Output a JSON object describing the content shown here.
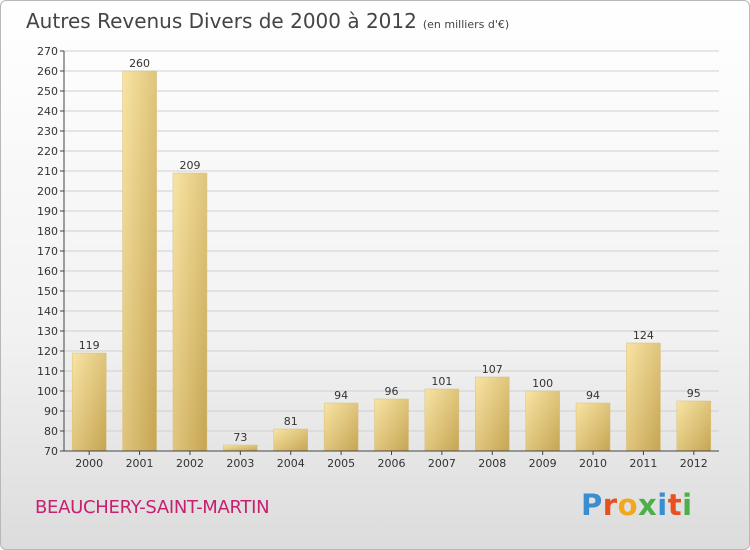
{
  "title": {
    "main": "Autres Revenus Divers de 2000 à 2012",
    "unit": "(en milliers d'€)"
  },
  "commune": "BEAUCHERY-SAINT-MARTIN",
  "logo": {
    "text": "Proxiti",
    "letters": [
      {
        "ch": "P",
        "color": "#3a8ed0"
      },
      {
        "ch": "r",
        "color": "#e94f1f"
      },
      {
        "ch": "o",
        "color": "#f2a81d"
      },
      {
        "ch": "x",
        "color": "#4bb04a"
      },
      {
        "ch": "i",
        "color": "#3a8ed0"
      },
      {
        "ch": "t",
        "color": "#e94f1f"
      },
      {
        "ch": "i",
        "color": "#4bb04a"
      }
    ]
  },
  "colors": {
    "bar_light": "#f6df9a",
    "bar_dark": "#c9a95a",
    "title": "#444444",
    "commune": "#c72070"
  },
  "chart_data": {
    "type": "bar",
    "categories": [
      "2000",
      "2001",
      "2002",
      "2003",
      "2004",
      "2005",
      "2006",
      "2007",
      "2008",
      "2009",
      "2010",
      "2011",
      "2012"
    ],
    "values": [
      119,
      260,
      209,
      73,
      81,
      94,
      96,
      101,
      107,
      100,
      94,
      124,
      95
    ],
    "value_labels": [
      "119",
      "260",
      "209",
      "73",
      "81",
      "94",
      "96",
      "101",
      "107",
      "100",
      "94",
      "124",
      "95"
    ],
    "ylim": [
      70,
      270
    ],
    "yticks": [
      70,
      80,
      90,
      100,
      110,
      120,
      130,
      140,
      150,
      160,
      170,
      180,
      190,
      200,
      210,
      220,
      230,
      240,
      250,
      260,
      270
    ],
    "ytick_labels": [
      "70",
      "80",
      "90",
      "100",
      "110",
      "120",
      "130",
      "140",
      "150",
      "160",
      "170",
      "180",
      "190",
      "200",
      "210",
      "220",
      "230",
      "240",
      "250",
      "260",
      "270"
    ],
    "grid": true
  }
}
